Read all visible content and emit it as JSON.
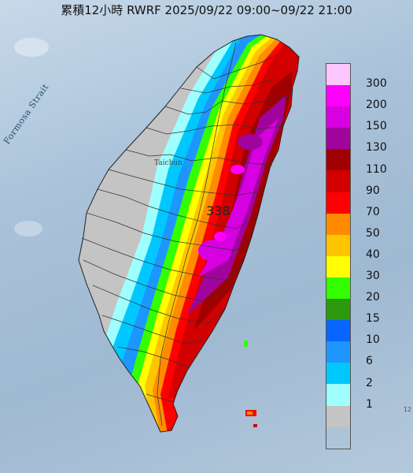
{
  "header": {
    "title": "累積12小時 RWRF 2025/09/22 09:00~09/22 21:00"
  },
  "map": {
    "strait_label": "Formosa Strait",
    "city_label": "Taichun",
    "max_value": "338",
    "edge_label": "12"
  },
  "legend": {
    "labels": [
      "300",
      "200",
      "150",
      "130",
      "110",
      "90",
      "70",
      "50",
      "40",
      "30",
      "20",
      "15",
      "10",
      "6",
      "2",
      "1"
    ],
    "colors": [
      "#fdc6fe",
      "#fe00fe",
      "#d600e0",
      "#a0049d",
      "#a00000",
      "#d20000",
      "#ff0000",
      "#ff8c00",
      "#ffc500",
      "#ffff00",
      "#33ff00",
      "#2b9a0c",
      "#0766ff",
      "#1e96ff",
      "#00c8ff",
      "#9ffffe",
      "#c4c4c4"
    ]
  }
}
